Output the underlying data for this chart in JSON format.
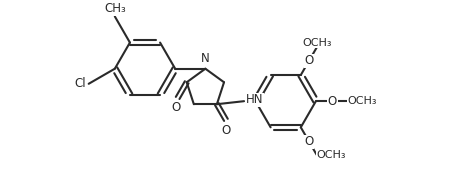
{
  "background_color": "#ffffff",
  "line_color": "#2a2a2a",
  "line_width": 1.5,
  "font_size": 8.5,
  "figsize": [
    4.56,
    1.69
  ],
  "dpi": 100,
  "xlim": [
    -0.5,
    9.0
  ],
  "ylim": [
    -2.5,
    2.8
  ]
}
